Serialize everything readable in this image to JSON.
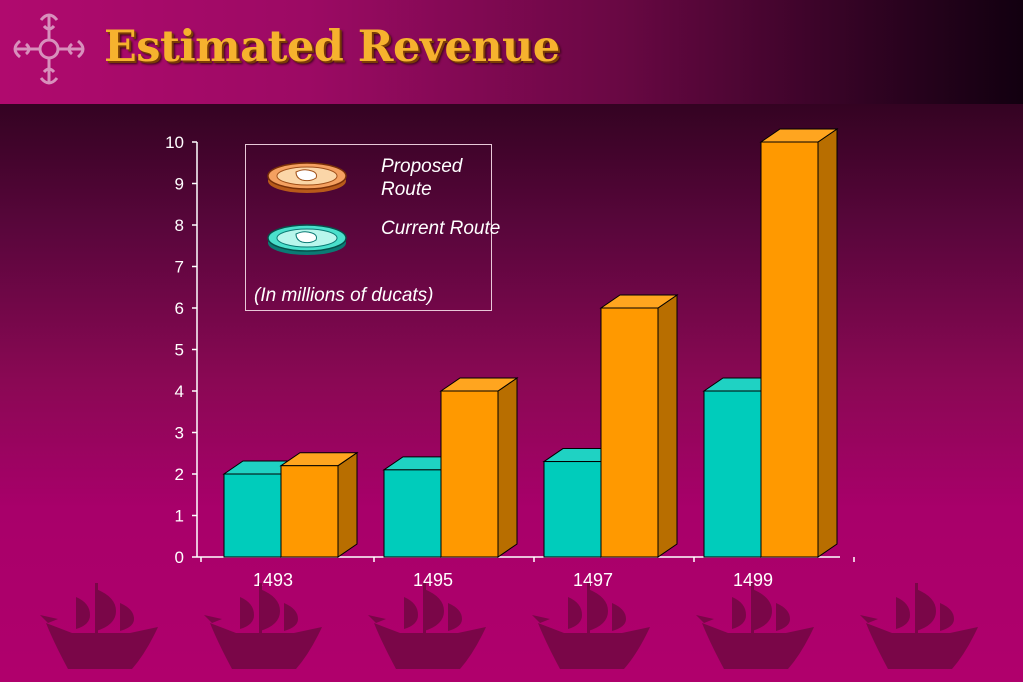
{
  "header": {
    "title": "Estimated Revenue"
  },
  "legend": {
    "items": [
      {
        "label": "Proposed Route",
        "icon": "gold-coin-icon",
        "color": "#ff9900"
      },
      {
        "label": "Current Route",
        "icon": "teal-coin-icon",
        "color": "#00ccbb"
      }
    ],
    "note": "(In millions of ducats)"
  },
  "chart_data": {
    "type": "bar",
    "categories": [
      "1493",
      "1495",
      "1497",
      "1499"
    ],
    "series": [
      {
        "name": "Current Route",
        "values": [
          2.0,
          2.1,
          2.3,
          4.0
        ],
        "color": "#00ccbb"
      },
      {
        "name": "Proposed Route",
        "values": [
          2.2,
          4.0,
          6.0,
          10.0
        ],
        "color": "#ff9900"
      }
    ],
    "ylim": [
      0,
      10
    ],
    "yticks": [
      0,
      1,
      2,
      3,
      4,
      5,
      6,
      7,
      8,
      9,
      10
    ],
    "grid": false,
    "legend_position": "top-left",
    "three_d": true
  },
  "decorations": {
    "corner_logo": "cross-emblem-icon",
    "footer": "caravel-ship-icon"
  }
}
